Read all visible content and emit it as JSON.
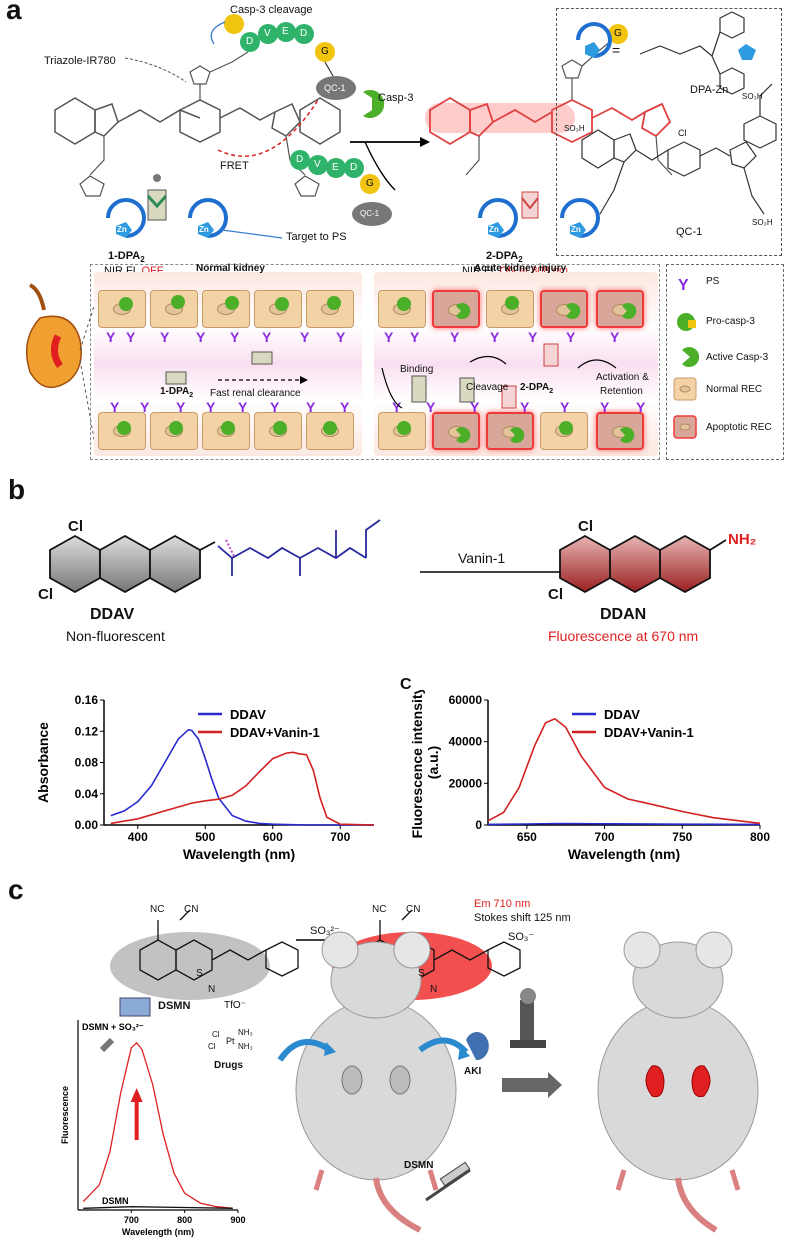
{
  "panels": {
    "a": "a",
    "b": "b",
    "c": "c"
  },
  "a": {
    "triazole_label": "Triazole-IR780",
    "casp3_cleavage": "Casp-3 cleavage",
    "qc1": "QC-1",
    "fret": "FRET",
    "target_ps": "Target to PS",
    "casp3": "Casp-3",
    "compound1": "1-DPA",
    "compound1_sub": "2",
    "compound1_state_prefix": "NIR FL ",
    "compound1_state": "OFF",
    "compound2": "2-DPA",
    "compound2_sub": "2",
    "compound2_state_prefix": "NIR FL ",
    "compound2_state": "ON at 808 nm",
    "peptide": [
      "D",
      "V",
      "E",
      "D"
    ],
    "g_label": "G",
    "zn_label": "Zn",
    "dpa_zn": "DPA-Zn",
    "qc1_structure_label": "QC-1",
    "legend_ps": "PS",
    "legend_procasp": "Pro-casp-3",
    "legend_active": "Active Casp-3",
    "legend_normal": "Normal REC",
    "legend_apoptotic": "Apoptotic REC",
    "normal_kidney": "Normal kidney",
    "aki": "Acute kidney injury",
    "fast_clearance": "Fast renal clearance",
    "binding": "Binding",
    "cleavage": "Cleavage",
    "activation": "Activation &",
    "retention": "Retention",
    "cl_label": "Cl",
    "so3h": "SO₃H"
  },
  "b": {
    "enzyme": "Vanin-1",
    "ddav": "DDAV",
    "ddav_desc": "Non-fluorescent",
    "ddan": "DDAN",
    "ddan_desc": "Fluorescence at 670 nm",
    "nh2": "NH₂",
    "c_label": "C"
  },
  "chart_data": [
    {
      "type": "line",
      "xlabel": "Wavelength (nm)",
      "ylabel": "Absorbance",
      "xlim": [
        350,
        750
      ],
      "ylim": [
        0,
        0.16
      ],
      "xticks": [
        400,
        500,
        600,
        700
      ],
      "yticks": [
        0.0,
        0.04,
        0.08,
        0.12,
        0.16
      ],
      "ytick_labels": [
        "0.00",
        "0.04",
        "0.08",
        "0.12",
        "0.16"
      ],
      "legend": "top-right",
      "series": [
        {
          "name": "DDAV",
          "color": "#2a2ad0",
          "x": [
            360,
            380,
            400,
            420,
            440,
            460,
            475,
            480,
            490,
            500,
            510,
            520,
            540,
            560,
            580,
            600,
            650,
            700,
            750
          ],
          "y": [
            0.012,
            0.018,
            0.03,
            0.05,
            0.08,
            0.11,
            0.122,
            0.121,
            0.11,
            0.085,
            0.058,
            0.034,
            0.012,
            0.005,
            0.002,
            0.001,
            0.0,
            0.0,
            0.0
          ]
        },
        {
          "name": "DDAV+Vanin-1",
          "color": "#d42020",
          "x": [
            360,
            400,
            440,
            480,
            500,
            520,
            540,
            560,
            580,
            600,
            620,
            630,
            640,
            650,
            660,
            670,
            680,
            700,
            750
          ],
          "y": [
            0.002,
            0.008,
            0.018,
            0.028,
            0.031,
            0.033,
            0.038,
            0.05,
            0.068,
            0.085,
            0.092,
            0.093,
            0.091,
            0.09,
            0.07,
            0.035,
            0.01,
            0.001,
            0.0
          ]
        }
      ]
    },
    {
      "type": "line",
      "xlabel": "Wavelength (nm)",
      "ylabel": "Fluorescence intensity (a.u.)",
      "xlim": [
        625,
        800
      ],
      "ylim": [
        0,
        60000
      ],
      "xticks": [
        650,
        700,
        750,
        800
      ],
      "yticks": [
        0,
        20000,
        40000,
        60000
      ],
      "ytick_labels": [
        "0",
        "20000",
        "40000",
        "60000"
      ],
      "legend": "top-right",
      "series": [
        {
          "name": "DDAV",
          "color": "#2a2ad0",
          "x": [
            625,
            650,
            670,
            700,
            750,
            800
          ],
          "y": [
            300,
            500,
            700,
            600,
            400,
            300
          ]
        },
        {
          "name": "DDAV+Vanin-1",
          "color": "#d42020",
          "x": [
            625,
            635,
            645,
            655,
            662,
            668,
            675,
            685,
            700,
            715,
            730,
            750,
            770,
            800
          ],
          "y": [
            2000,
            6000,
            18000,
            38000,
            49000,
            51000,
            47000,
            33000,
            18000,
            12500,
            10000,
            6500,
            3500,
            800
          ]
        }
      ]
    },
    {
      "type": "line",
      "xlabel": "Wavelength (nm)",
      "ylabel": "Fluorescence",
      "xlim": [
        600,
        900
      ],
      "xticks": [
        700,
        800,
        900
      ],
      "series": [
        {
          "name": "DSMN + SO₃²⁻",
          "color": "#e02020",
          "x": [
            610,
            640,
            660,
            680,
            700,
            710,
            720,
            740,
            760,
            780,
            800,
            830,
            860,
            890
          ],
          "y": [
            0.05,
            0.15,
            0.35,
            0.7,
            0.97,
            1.0,
            0.96,
            0.75,
            0.45,
            0.22,
            0.1,
            0.04,
            0.02,
            0.01
          ]
        },
        {
          "name": "DSMN",
          "color": "#111111",
          "x": [
            610,
            700,
            800,
            890
          ],
          "y": [
            0.01,
            0.02,
            0.015,
            0.01
          ]
        }
      ]
    }
  ],
  "c": {
    "em": "Em 710 nm",
    "stokes": "Stokes shift 125 nm",
    "so3_reagent": "SO₃²⁻",
    "so3_product": "SO₃⁻",
    "dsmn": "DSMN",
    "tfo": "TfO⁻",
    "nc": "NC",
    "cn": "CN",
    "drugs": "Drugs",
    "aki": "AKI",
    "dsmn_syringe": "DSMN",
    "dsmn_plus": "DSMN + SO₃²⁻",
    "dsmn_base": "DSMN",
    "cl": "Cl",
    "pt": "Pt",
    "nh3": "NH₃",
    "s": "S",
    "n": "N"
  }
}
